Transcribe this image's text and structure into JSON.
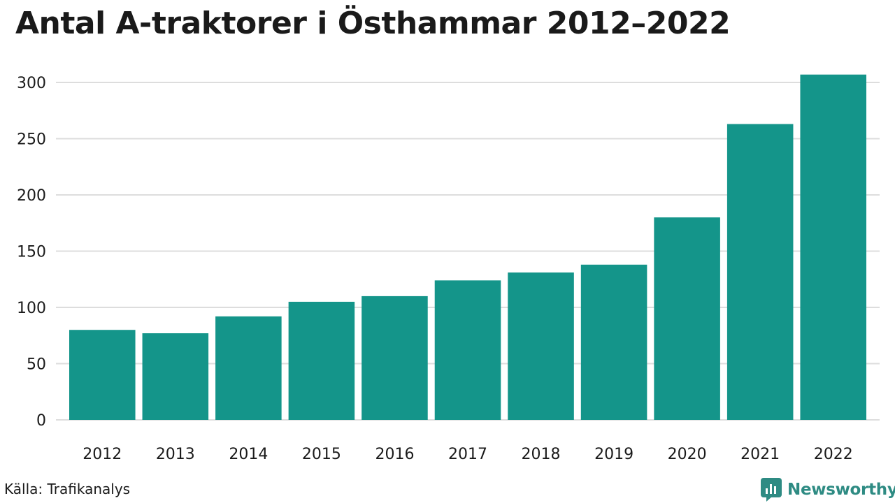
{
  "chart_data": {
    "type": "bar",
    "title": "Antal A-traktorer i Östhammar 2012–2022",
    "categories": [
      "2012",
      "2013",
      "2014",
      "2015",
      "2016",
      "2017",
      "2018",
      "2019",
      "2020",
      "2021",
      "2022"
    ],
    "values": [
      80,
      77,
      92,
      105,
      110,
      124,
      131,
      138,
      180,
      263,
      307
    ],
    "xlabel": "",
    "ylabel": "",
    "ylim": [
      0,
      300
    ],
    "yticks": [
      0,
      50,
      100,
      150,
      200,
      250,
      300
    ],
    "grid": true,
    "bar_color": "#14958a",
    "grid_color": "#dddddd"
  },
  "footer": {
    "source": "Källa: Trafikanalys",
    "brand": "Newsworthy",
    "brand_color": "#2e8b83"
  }
}
